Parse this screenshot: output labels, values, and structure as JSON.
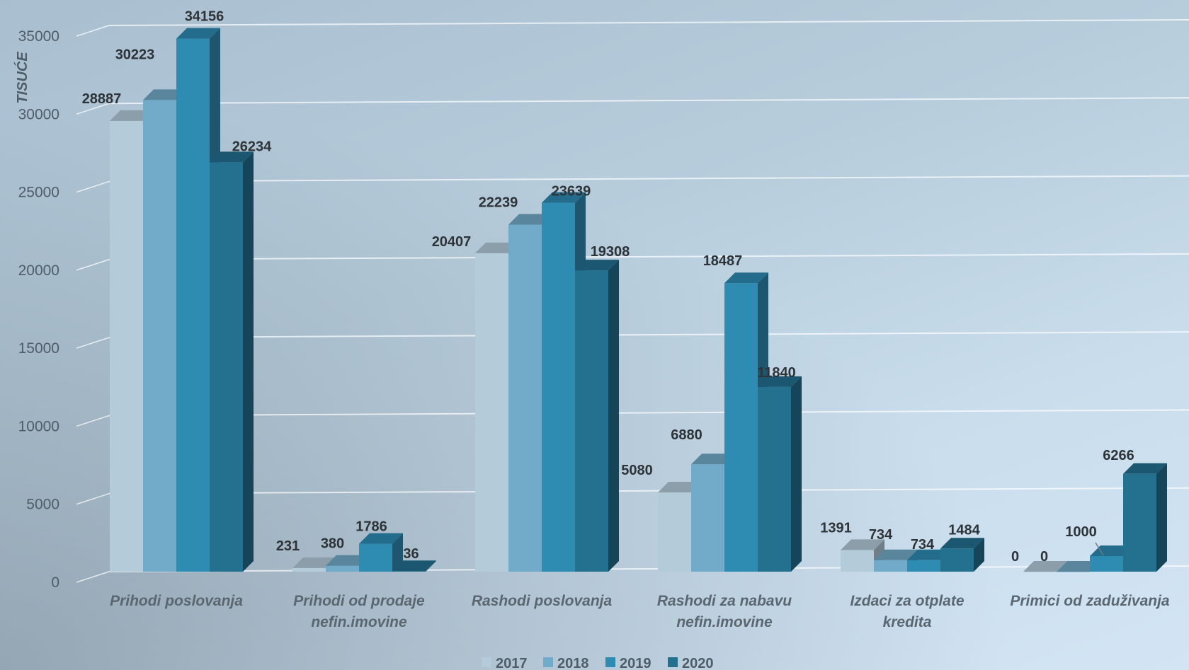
{
  "chart_data": {
    "type": "bar",
    "title": "",
    "xlabel": "",
    "ylabel": "TISUĆE",
    "ylim": [
      0,
      35000
    ],
    "yticks": [
      0,
      5000,
      10000,
      15000,
      20000,
      25000,
      30000,
      35000
    ],
    "grid": true,
    "legend_position": "bottom",
    "categories": [
      [
        "Prihodi poslovanja"
      ],
      [
        "Prihodi od prodaje",
        "nefin.imovine"
      ],
      [
        "Rashodi poslovanja"
      ],
      [
        "Rashodi za nabavu",
        "nefin.imovine"
      ],
      [
        "Izdaci za otplate",
        "kredita"
      ],
      [
        "Primici od zaduživanja"
      ]
    ],
    "series": [
      {
        "name": "2017",
        "color": "#b4cbd9",
        "values": [
          28887,
          231,
          20407,
          5080,
          1391,
          0
        ]
      },
      {
        "name": "2018",
        "color": "#72abc9",
        "values": [
          30223,
          380,
          22239,
          6880,
          734,
          0
        ]
      },
      {
        "name": "2019",
        "color": "#2e8bb2",
        "values": [
          34156,
          1786,
          23639,
          18487,
          734,
          1000
        ]
      },
      {
        "name": "2020",
        "color": "#23708f",
        "values": [
          26234,
          36,
          19308,
          11840,
          1484,
          6266
        ]
      }
    ]
  }
}
